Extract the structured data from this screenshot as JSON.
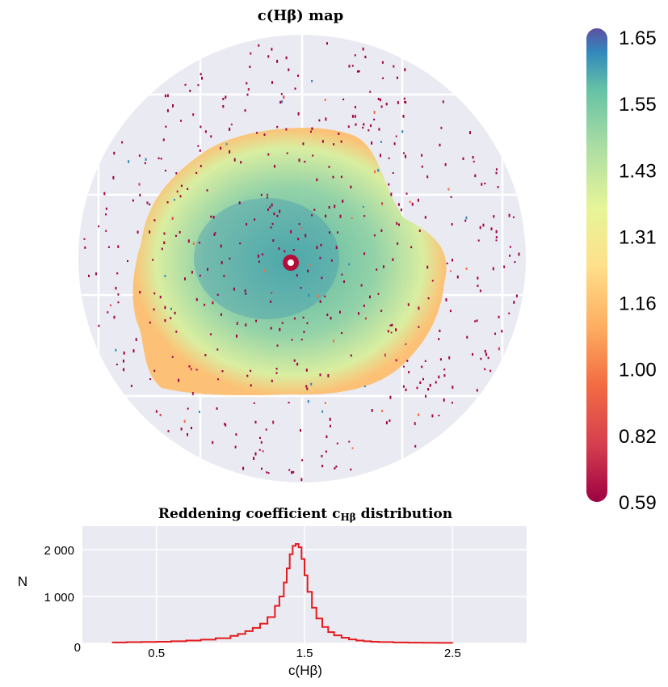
{
  "chart_data": [
    {
      "type": "heatmap",
      "title": "c(Hβ) map",
      "colorbar": {
        "ticks": [
          "1.65",
          "1.55",
          "1.43",
          "1.31",
          "1.16",
          "1.00",
          "0.82",
          "0.59"
        ],
        "range": [
          0.59,
          1.65
        ],
        "colormap": "Spectral",
        "orientation": "vertical",
        "placement": "right"
      },
      "shape": "circular field of view",
      "grid": true,
      "background_color": "#eaeaf2"
    },
    {
      "type": "line",
      "style": "step histogram",
      "title": "Reddening coefficient cHβ distribution",
      "title_parts": {
        "prefix": "Reddening coefficient c",
        "subscript": "Hβ",
        "suffix": " distribution"
      },
      "xlabel": "c(Hβ)",
      "ylabel": "N",
      "xlim": [
        0.0,
        3.0
      ],
      "ylim": [
        0,
        2500
      ],
      "xticks": [
        0.5,
        1.5,
        2.5
      ],
      "xtick_labels": [
        "0.5",
        "1.5",
        "2.5"
      ],
      "yticks": [
        0,
        1000,
        2000
      ],
      "ytick_labels": [
        "0",
        "1 000",
        "2 000"
      ],
      "grid": true,
      "color": "#e41a1c",
      "x": [
        0.2,
        0.3,
        0.4,
        0.5,
        0.6,
        0.7,
        0.8,
        0.9,
        1.0,
        1.05,
        1.1,
        1.15,
        1.2,
        1.25,
        1.3,
        1.33,
        1.36,
        1.38,
        1.4,
        1.42,
        1.44,
        1.46,
        1.48,
        1.5,
        1.52,
        1.55,
        1.58,
        1.62,
        1.66,
        1.7,
        1.75,
        1.8,
        1.85,
        1.9,
        1.95,
        2.0,
        2.1,
        2.2,
        2.3,
        2.4,
        2.5
      ],
      "y": [
        20,
        25,
        30,
        35,
        45,
        60,
        80,
        110,
        160,
        200,
        260,
        330,
        420,
        560,
        800,
        1000,
        1300,
        1600,
        1900,
        2080,
        2120,
        2050,
        1800,
        1450,
        1100,
        760,
        530,
        350,
        240,
        170,
        120,
        85,
        60,
        45,
        35,
        28,
        20,
        15,
        12,
        10,
        8
      ]
    }
  ]
}
